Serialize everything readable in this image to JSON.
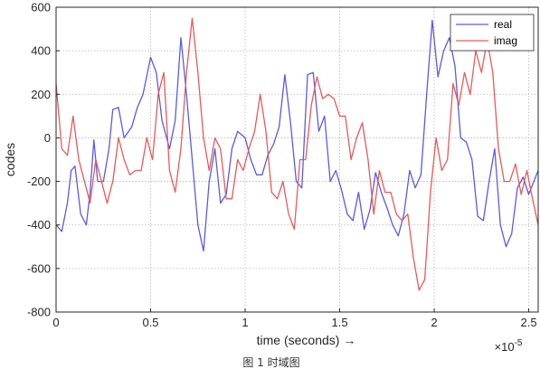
{
  "chart_data": {
    "type": "line",
    "title": "",
    "xlabel": "time  (seconds) →",
    "ylabel": "codes",
    "x_multiplier": "×10",
    "x_multiplier_exp": "-5",
    "xlim": [
      0,
      2.55
    ],
    "ylim": [
      -800,
      600
    ],
    "xticks": [
      0,
      0.5,
      1,
      1.5,
      2,
      2.5
    ],
    "xtick_labels": [
      "0",
      "0.5",
      "1",
      "1.5",
      "2",
      "2.5"
    ],
    "yticks": [
      -800,
      -600,
      -400,
      -200,
      0,
      200,
      400,
      600
    ],
    "ytick_labels": [
      "-800",
      "-600",
      "-400",
      "-200",
      "0",
      "200",
      "400",
      "600"
    ],
    "grid": true,
    "legend_position": "top-right",
    "series": [
      {
        "name": "real",
        "color": "#5a5ae6",
        "x": [
          0,
          0.03,
          0.06,
          0.08,
          0.1,
          0.13,
          0.16,
          0.18,
          0.2,
          0.22,
          0.25,
          0.28,
          0.3,
          0.33,
          0.36,
          0.4,
          0.43,
          0.46,
          0.5,
          0.53,
          0.56,
          0.6,
          0.63,
          0.66,
          0.69,
          0.72,
          0.75,
          0.78,
          0.81,
          0.84,
          0.87,
          0.9,
          0.93,
          0.96,
          1.0,
          1.03,
          1.06,
          1.09,
          1.12,
          1.15,
          1.18,
          1.21,
          1.24,
          1.27,
          1.3,
          1.33,
          1.36,
          1.39,
          1.42,
          1.45,
          1.48,
          1.51,
          1.54,
          1.57,
          1.6,
          1.63,
          1.66,
          1.69,
          1.72,
          1.75,
          1.78,
          1.81,
          1.84,
          1.87,
          1.9,
          1.93,
          1.96,
          1.99,
          2.02,
          2.05,
          2.08,
          2.11,
          2.14,
          2.17,
          2.2,
          2.23,
          2.26,
          2.29,
          2.32,
          2.35,
          2.38,
          2.41,
          2.44,
          2.47,
          2.5,
          2.55
        ],
        "values": [
          -400,
          -430,
          -300,
          -150,
          -130,
          -350,
          -400,
          -250,
          -10,
          -200,
          -200,
          -50,
          130,
          140,
          0,
          50,
          140,
          200,
          370,
          300,
          80,
          -50,
          80,
          460,
          200,
          -100,
          -400,
          -520,
          -200,
          -50,
          -300,
          -260,
          -50,
          30,
          0,
          -100,
          -170,
          -170,
          -80,
          -30,
          50,
          290,
          70,
          -200,
          -230,
          290,
          300,
          30,
          100,
          -200,
          -150,
          -240,
          -350,
          -380,
          -250,
          -420,
          -330,
          -160,
          -250,
          -320,
          -400,
          -450,
          -350,
          -150,
          -230,
          -170,
          200,
          540,
          280,
          400,
          460,
          330,
          0,
          -20,
          -100,
          -360,
          -380,
          -200,
          -50,
          -400,
          -500,
          -440,
          -230,
          -180,
          -260,
          -150
        ]
      },
      {
        "name": "imag",
        "color": "#e65a5a",
        "x": [
          0,
          0.03,
          0.06,
          0.09,
          0.12,
          0.15,
          0.18,
          0.21,
          0.24,
          0.27,
          0.3,
          0.33,
          0.36,
          0.39,
          0.42,
          0.45,
          0.48,
          0.51,
          0.54,
          0.57,
          0.6,
          0.63,
          0.66,
          0.69,
          0.72,
          0.75,
          0.78,
          0.81,
          0.84,
          0.87,
          0.9,
          0.93,
          0.96,
          0.99,
          1.02,
          1.05,
          1.08,
          1.11,
          1.14,
          1.17,
          1.2,
          1.23,
          1.26,
          1.29,
          1.32,
          1.35,
          1.38,
          1.41,
          1.44,
          1.47,
          1.5,
          1.53,
          1.56,
          1.59,
          1.62,
          1.65,
          1.68,
          1.71,
          1.74,
          1.77,
          1.8,
          1.83,
          1.86,
          1.89,
          1.92,
          1.95,
          1.98,
          2.01,
          2.04,
          2.07,
          2.1,
          2.13,
          2.16,
          2.19,
          2.22,
          2.25,
          2.28,
          2.31,
          2.34,
          2.37,
          2.4,
          2.43,
          2.46,
          2.49,
          2.52,
          2.55
        ],
        "values": [
          250,
          -50,
          -80,
          100,
          -100,
          -200,
          -300,
          -100,
          -200,
          -300,
          -200,
          0,
          -100,
          -170,
          -150,
          -150,
          0,
          -100,
          200,
          300,
          -150,
          -250,
          -50,
          300,
          550,
          300,
          0,
          -150,
          0,
          -50,
          -280,
          -280,
          -100,
          -150,
          -50,
          30,
          200,
          30,
          -250,
          -280,
          -200,
          -350,
          -420,
          -100,
          -100,
          150,
          280,
          180,
          200,
          180,
          100,
          100,
          -100,
          0,
          70,
          -100,
          -350,
          -150,
          -250,
          -250,
          -350,
          -380,
          -350,
          -550,
          -700,
          -650,
          -250,
          0,
          -150,
          -100,
          250,
          150,
          300,
          200,
          400,
          300,
          450,
          300,
          -50,
          -200,
          -200,
          -120,
          -260,
          -150,
          -280,
          -400
        ]
      }
    ]
  },
  "caption": "图 1  时域图"
}
